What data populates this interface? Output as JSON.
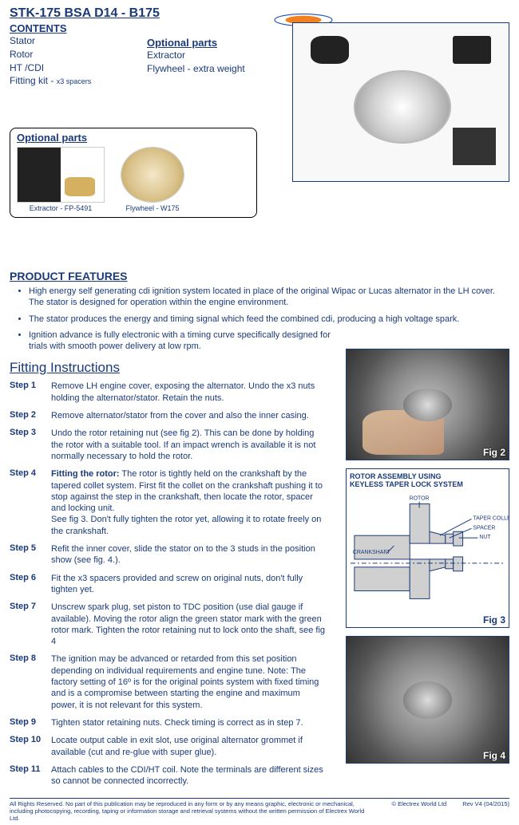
{
  "title": "STK-175  BSA D14 - B175",
  "contents_head": "CONTENTS",
  "contents": [
    "Stator",
    "Rotor",
    "HT /CDI"
  ],
  "fitting_kit_line": "Fitting kit - ",
  "fitting_kit_note": "x3 spacers",
  "optional_head": "Optional parts",
  "optional_list": [
    "Extractor",
    "Flywheel - extra weight"
  ],
  "optional_box_head": "Optional parts",
  "optional_items": [
    {
      "label": "Extractor - FP-5491"
    },
    {
      "label": "Flywheel - W175"
    }
  ],
  "features_head": "PRODUCT FEATURES",
  "features": [
    "High energy self generating cdi ignition system located in place of the original Wipac or Lucas alternator in the LH cover. The stator is designed for operation within the engine environment.",
    "The stator produces the energy and timing signal which feed the combined cdi, producing a high voltage spark.",
    "Ignition advance is fully electronic with a timing curve specifically designed for trials with smooth power delivery at low rpm."
  ],
  "fitting_head": "Fitting Instructions",
  "steps": [
    {
      "n": "Step 1",
      "text": "Remove LH engine cover, exposing the alternator. Undo the x3 nuts holding the alternator/stator. Retain the nuts.",
      "narrow": true
    },
    {
      "n": "Step 2",
      "text": "Remove alternator/stator from the cover and also the inner casing.",
      "narrow": true
    },
    {
      "n": "Step 3",
      "text": "Undo the rotor retaining nut (see fig 2). This can be done by holding the rotor with a suitable tool. If an impact wrench is available it is not normally necessary to hold the rotor.",
      "narrow": true
    },
    {
      "n": "Step 4",
      "bold": "Fitting the rotor:",
      "text": " The rotor is tightly held on the crankshaft by the tapered collet system. First fit the collet on the crankshaft pushing it to stop against the step in the crankshaft, then locate the rotor, spacer and locking unit.\nSee fig 3. Don't fully tighten the rotor yet, allowing it to rotate freely on the crankshaft.",
      "narrow": true
    },
    {
      "n": "Step 5",
      "text": "Refit the inner cover, slide the stator on to the 3 studs in the position show (see fig. 4.).",
      "narrow": true
    },
    {
      "n": "Step 6",
      "text": "Fit the x3 spacers provided and screw on original nuts, don't  fully tighten yet.",
      "narrow": true
    },
    {
      "n": "Step 7",
      "text": "Unscrew spark plug, set piston to TDC position (use dial gauge  if available). Moving the rotor align the green stator mark with the green rotor mark. Tighten the rotor retaining nut to lock onto the shaft, see fig 4",
      "narrow": true
    },
    {
      "n": "Step 8",
      "text": "The ignition may be advanced or retarded from this set position depending on individual requirements and engine tune. Note: The factory setting of 16º is for the original points system with fixed timing and is a compromise between starting the engine and maximum power, it is not relevant for this system.",
      "narrow": true
    },
    {
      "n": "Step 9",
      "text": "Tighten stator retaining nuts. Check timing is correct as in step 7.",
      "narrow": true
    },
    {
      "n": "Step 10",
      "text": "Locate output cable in exit slot, use original alternator grommet if available (cut and re-glue with super glue).",
      "narrow": true
    },
    {
      "n": "Step 11",
      "text": "Attach cables to the CDI/HT coil. Note the terminals are different sizes so cannot be connected incorrectly.",
      "narrow": true
    }
  ],
  "fig2_label": "Fig 2",
  "fig3_label": "Fig 3",
  "fig4_label": "Fig 4",
  "fig3_title": "ROTOR ASSEMBLY USING\nKEYLESS TAPER LOCK SYSTEM",
  "fig3_parts": {
    "rotor": "ROTOR",
    "taper": "TAPER COLLET",
    "spacer": "SPACER",
    "nut": "NUT",
    "crank": "CRANKSHAFT"
  },
  "footer_left": "All Rights Reserved.  No part of this publication may be reproduced in any form or by any means graphic, electronic or mechanical, including photocopying, recording, taping or information storage and retrieval systems without the written permission of Electrex World Ltd.",
  "footer_center": "© Electrex World Ltd",
  "footer_right": "Rev V4 (04/2015)",
  "colors": {
    "text": "#1a3a7a",
    "logo_orange": "#f08020",
    "logo_blue": "#2050b0"
  }
}
